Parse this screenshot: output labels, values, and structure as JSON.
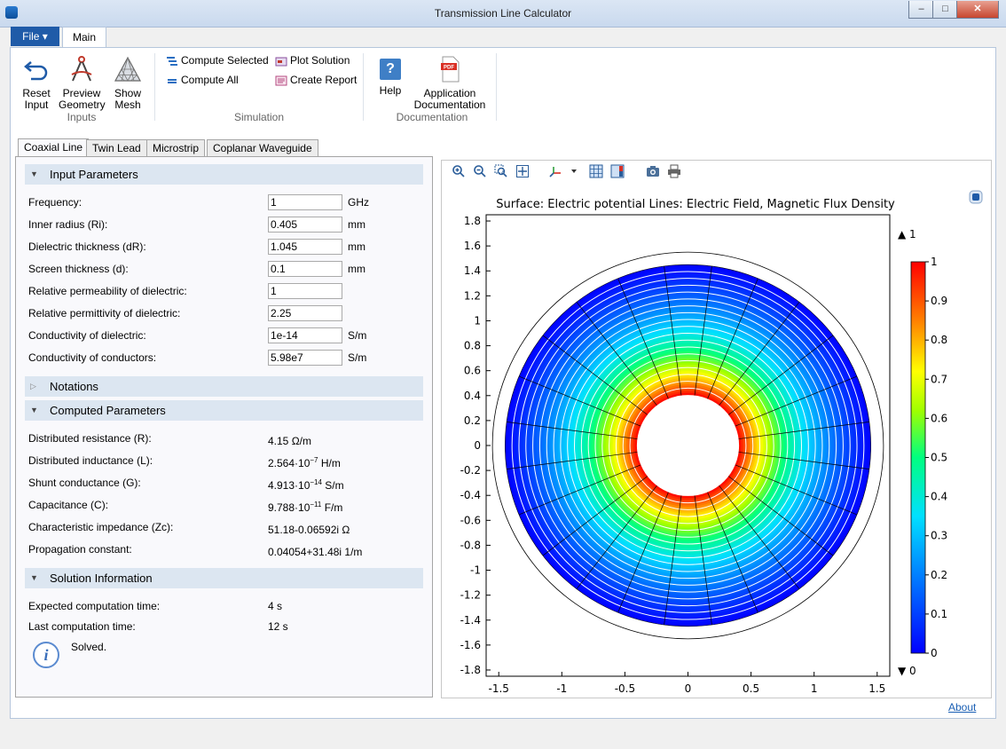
{
  "window": {
    "title": "Transmission Line Calculator"
  },
  "ribbon": {
    "file_label": "File ▾",
    "main_tab": "Main",
    "inputs": {
      "group": "Inputs",
      "reset": [
        "Reset",
        "Input"
      ],
      "preview": [
        "Preview",
        "Geometry"
      ],
      "mesh": [
        "Show",
        "Mesh"
      ]
    },
    "simulation": {
      "group": "Simulation",
      "compute_selected": "Compute Selected",
      "compute_all": "Compute All",
      "plot_solution": "Plot Solution",
      "create_report": "Create Report"
    },
    "documentation": {
      "group": "Documentation",
      "help": "Help",
      "app_doc": [
        "Application",
        "Documentation"
      ]
    }
  },
  "tabs": [
    "Coaxial Line",
    "Twin Lead",
    "Microstrip",
    "Coplanar Waveguide"
  ],
  "input_section": "Input Parameters",
  "inputs": [
    {
      "label": "Frequency:",
      "value": "1",
      "unit": "GHz"
    },
    {
      "label": "Inner radius (Ri):",
      "value": "0.405",
      "unit": "mm"
    },
    {
      "label": "Dielectric thickness (dR):",
      "value": "1.045",
      "unit": "mm"
    },
    {
      "label": "Screen thickness (d):",
      "value": "0.1",
      "unit": "mm"
    },
    {
      "label": "Relative permeability of dielectric:",
      "value": "1",
      "unit": ""
    },
    {
      "label": "Relative permittivity of dielectric:",
      "value": "2.25",
      "unit": ""
    },
    {
      "label": "Conductivity of dielectric:",
      "value": "1e-14",
      "unit": "S/m"
    },
    {
      "label": "Conductivity of conductors:",
      "value": "5.98e7",
      "unit": "S/m"
    }
  ],
  "notations_section": "Notations",
  "computed_section": "Computed Parameters",
  "computed": [
    {
      "label": "Distributed resistance (R):",
      "base": "4.15 Ω/m",
      "sup": "",
      "tail": ""
    },
    {
      "label": "Distributed inductance (L):",
      "base": "2.564·10",
      "sup": "−7",
      "tail": " H/m"
    },
    {
      "label": "Shunt conductance (G):",
      "base": "4.913·10",
      "sup": "−14",
      "tail": " S/m"
    },
    {
      "label": "Capacitance (C):",
      "base": "9.788·10",
      "sup": "−11",
      "tail": " F/m"
    },
    {
      "label": "Characteristic impedance (Zc):",
      "base": "51.18-0.06592i Ω",
      "sup": "",
      "tail": ""
    },
    {
      "label": "Propagation constant:",
      "base": "0.04054+31.48i 1/m",
      "sup": "",
      "tail": ""
    }
  ],
  "solution_section": "Solution Information",
  "solution": [
    {
      "label": "Expected computation time:",
      "value": "4 s"
    },
    {
      "label": "Last computation time:",
      "value": "12 s"
    }
  ],
  "status_message": "Solved.",
  "about_link": "About",
  "icons": [
    "reset-icon",
    "preview-geometry-icon",
    "mesh-icon",
    "compute-selected-icon",
    "compute-all-icon",
    "plot-solution-icon",
    "create-report-icon",
    "help-icon",
    "pdf-icon",
    "zoom-in-icon",
    "zoom-out-icon",
    "zoom-box-icon",
    "zoom-extents-icon",
    "axis-orientation-icon",
    "grid-icon",
    "legend-icon",
    "camera-icon",
    "print-icon",
    "info-icon"
  ],
  "chart_data": {
    "type": "heatmap",
    "title": "Surface: Electric potential Lines: Electric Field, Magnetic Flux Density",
    "xlim": [
      -1.6,
      1.6
    ],
    "ylim": [
      -1.85,
      1.85
    ],
    "x_ticks": [
      -1.5,
      -1,
      -0.5,
      0,
      0.5,
      1,
      1.5
    ],
    "x_tick_labels": [
      "-1.5",
      "-1",
      "-0.5",
      "0",
      "0.5",
      "1",
      "1.5"
    ],
    "y_ticks": [
      1.8,
      1.6,
      1.4,
      1.2,
      1,
      0.8,
      0.6,
      0.4,
      0.2,
      0,
      -0.2,
      -0.4,
      -0.6,
      -0.8,
      -1,
      -1.2,
      -1.4,
      -1.6,
      -1.8
    ],
    "y_tick_labels": [
      "1.8",
      "1.6",
      "1.4",
      "1.2",
      "1",
      "0.8",
      "0.6",
      "0.4",
      "0.2",
      "0",
      "-0.2",
      "-0.4",
      "-0.6",
      "-0.8",
      "-1",
      "-1.2",
      "-1.4",
      "-1.6",
      "-1.8"
    ],
    "inner_radius": 0.405,
    "outer_radius": 1.45,
    "screen_radius": 1.55,
    "colorbar": {
      "min": 0,
      "max": 1,
      "ticks": [
        1,
        0.9,
        0.8,
        0.7,
        0.6,
        0.5,
        0.4,
        0.3,
        0.2,
        0.1,
        0
      ],
      "tick_labels": [
        "1",
        "0.9",
        "0.8",
        "0.7",
        "0.6",
        "0.5",
        "0.4",
        "0.3",
        "0.2",
        "0.1",
        "0"
      ],
      "max_marker": "▲ 1",
      "min_marker": "▼ 0"
    },
    "colors": {
      "low": "#0000ff",
      "mid": "#00ff80",
      "high": "#ff0000"
    }
  }
}
